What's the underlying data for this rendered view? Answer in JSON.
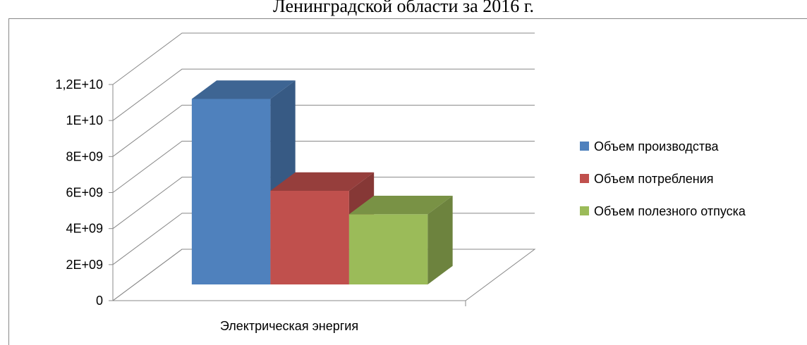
{
  "chart_data": {
    "type": "bar3d",
    "title": "Ленинградской области за 2016 г.",
    "categories": [
      "Электрическая энергия"
    ],
    "series": [
      {
        "name": "Объем производства",
        "color": "#4f81bd",
        "values": [
          10300000000
        ]
      },
      {
        "name": "Объем потребления",
        "color": "#c0504d",
        "values": [
          5200000000
        ]
      },
      {
        "name": "Объем полезного отпуска",
        "color": "#9bbb59",
        "values": [
          3900000000
        ]
      }
    ],
    "ylim": [
      0,
      12000000000
    ],
    "yticks": [
      0,
      {
        "value": 2000000000,
        "label": "2E+09"
      },
      {
        "value": 4000000000,
        "label": "4E+09"
      },
      {
        "value": 6000000000,
        "label": "6E+09"
      },
      {
        "value": 8000000000,
        "label": "8E+09"
      },
      {
        "value": 10000000000,
        "label": "1E+10"
      },
      {
        "value": 12000000000,
        "label": "1,2E+10"
      }
    ],
    "grid": true,
    "legend": "right"
  }
}
